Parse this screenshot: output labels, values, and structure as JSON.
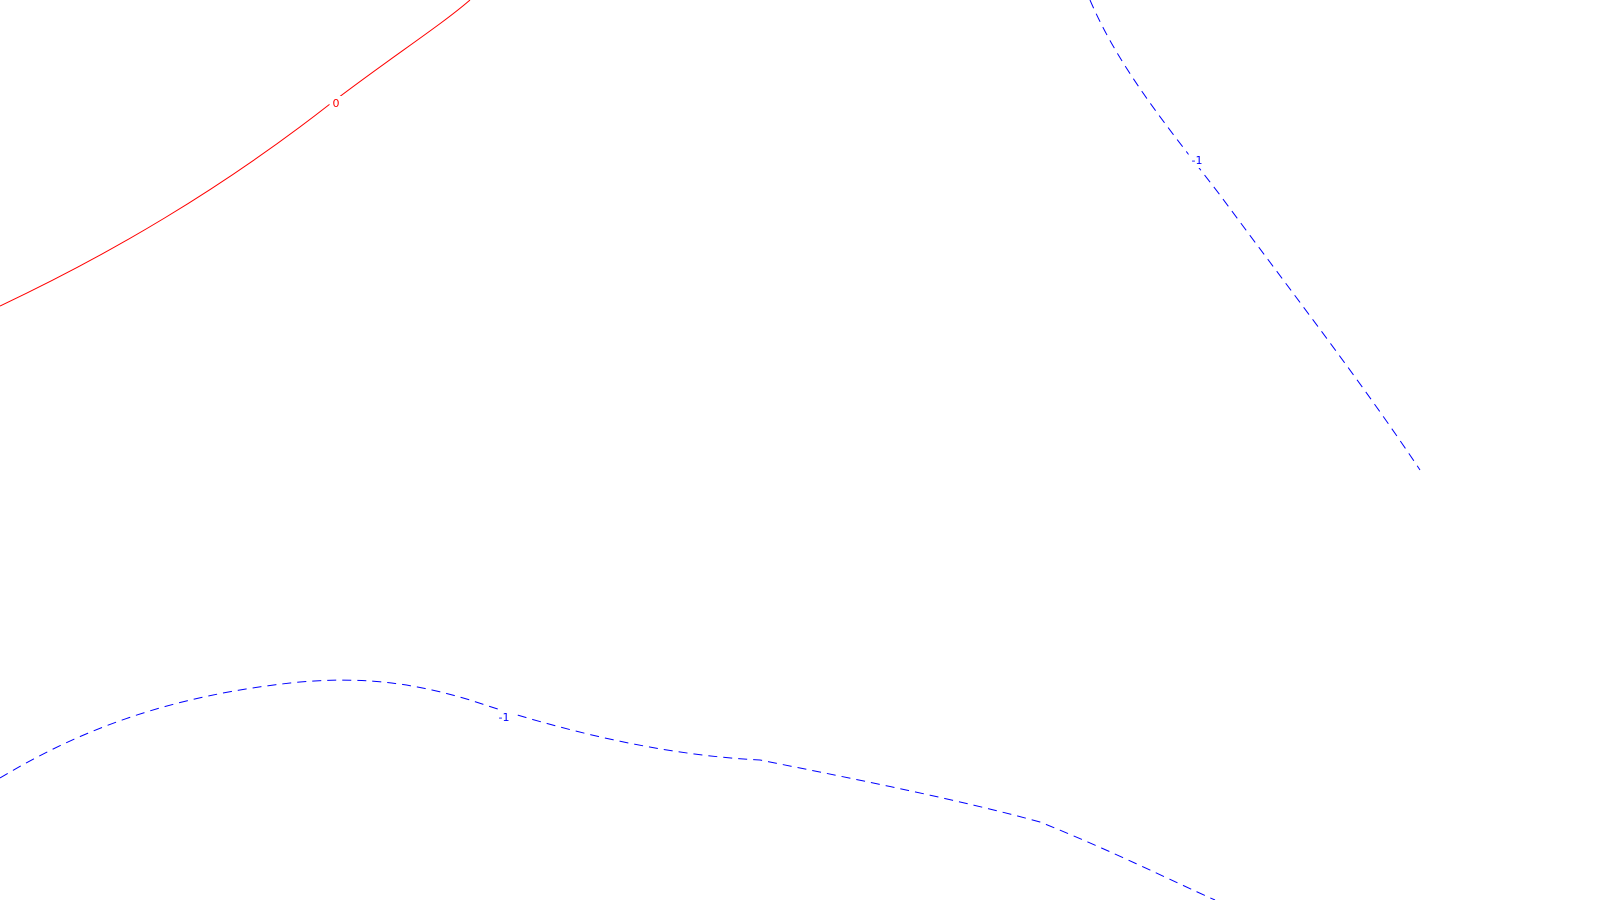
{
  "chart_data": {
    "type": "contour",
    "title": "",
    "xlabel": "",
    "ylabel": "",
    "grid": false,
    "legend": "none",
    "levels": [
      {
        "value": 0,
        "label": "0",
        "color": "#ff0000",
        "style": "solid"
      },
      {
        "value": -1,
        "label": "-1",
        "color": "#0000ff",
        "style": "dashed"
      }
    ]
  }
}
